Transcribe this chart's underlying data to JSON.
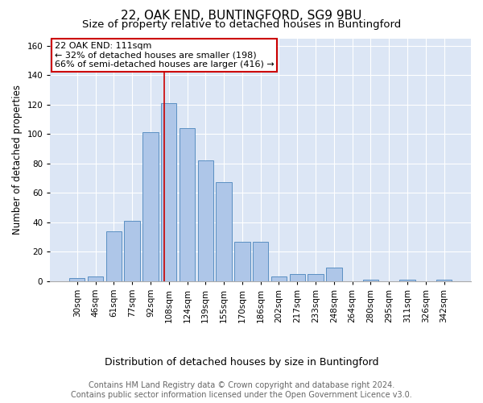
{
  "title": "22, OAK END, BUNTINGFORD, SG9 9BU",
  "subtitle": "Size of property relative to detached houses in Buntingford",
  "xlabel": "Distribution of detached houses by size in Buntingford",
  "ylabel": "Number of detached properties",
  "bar_labels": [
    "30sqm",
    "46sqm",
    "61sqm",
    "77sqm",
    "92sqm",
    "108sqm",
    "124sqm",
    "139sqm",
    "155sqm",
    "170sqm",
    "186sqm",
    "202sqm",
    "217sqm",
    "233sqm",
    "248sqm",
    "264sqm",
    "280sqm",
    "295sqm",
    "311sqm",
    "326sqm",
    "342sqm"
  ],
  "bar_values": [
    2,
    3,
    34,
    41,
    101,
    121,
    104,
    82,
    67,
    27,
    27,
    3,
    5,
    5,
    9,
    0,
    1,
    0,
    1,
    0,
    1
  ],
  "bar_color": "#aec6e8",
  "bar_edge_color": "#5a8fc2",
  "annotation_box_text": "22 OAK END: 111sqm\n← 32% of detached houses are smaller (198)\n66% of semi-detached houses are larger (416) →",
  "annotation_box_color": "#ffffff",
  "annotation_box_edge_color": "#cc0000",
  "vline_color": "#cc0000",
  "yticks": [
    0,
    20,
    40,
    60,
    80,
    100,
    120,
    140,
    160
  ],
  "ylim": [
    0,
    165
  ],
  "background_color": "#dce6f5",
  "footer_text": "Contains HM Land Registry data © Crown copyright and database right 2024.\nContains public sector information licensed under the Open Government Licence v3.0.",
  "title_fontsize": 11,
  "subtitle_fontsize": 9.5,
  "xlabel_fontsize": 9,
  "ylabel_fontsize": 8.5,
  "footer_fontsize": 7,
  "tick_fontsize": 7.5,
  "annot_fontsize": 8
}
